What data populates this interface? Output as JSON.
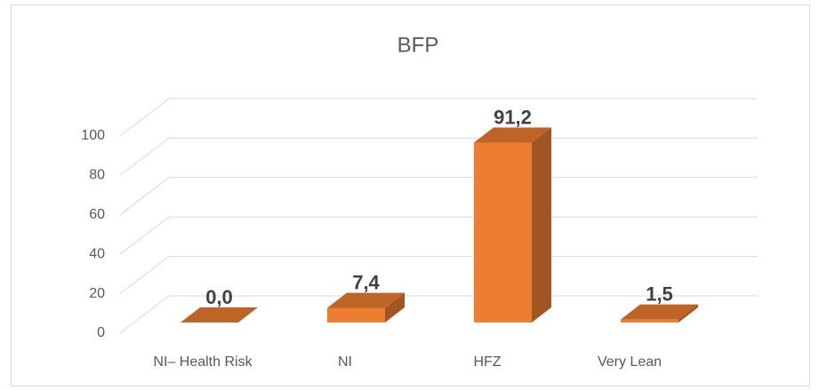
{
  "chart_data": {
    "type": "bar3d",
    "title": "BFP",
    "categories": [
      "NI– Health Risk",
      "NI",
      "HFZ",
      "Very Lean"
    ],
    "values": [
      0.0,
      7.4,
      91.2,
      1.5
    ],
    "value_labels": [
      "0,0",
      "7,4",
      "91,2",
      "1,5"
    ],
    "color": "#ed7d31",
    "ylim": [
      0,
      100
    ],
    "yticks": [
      0,
      20,
      40,
      60,
      80,
      100
    ],
    "grid": true
  }
}
